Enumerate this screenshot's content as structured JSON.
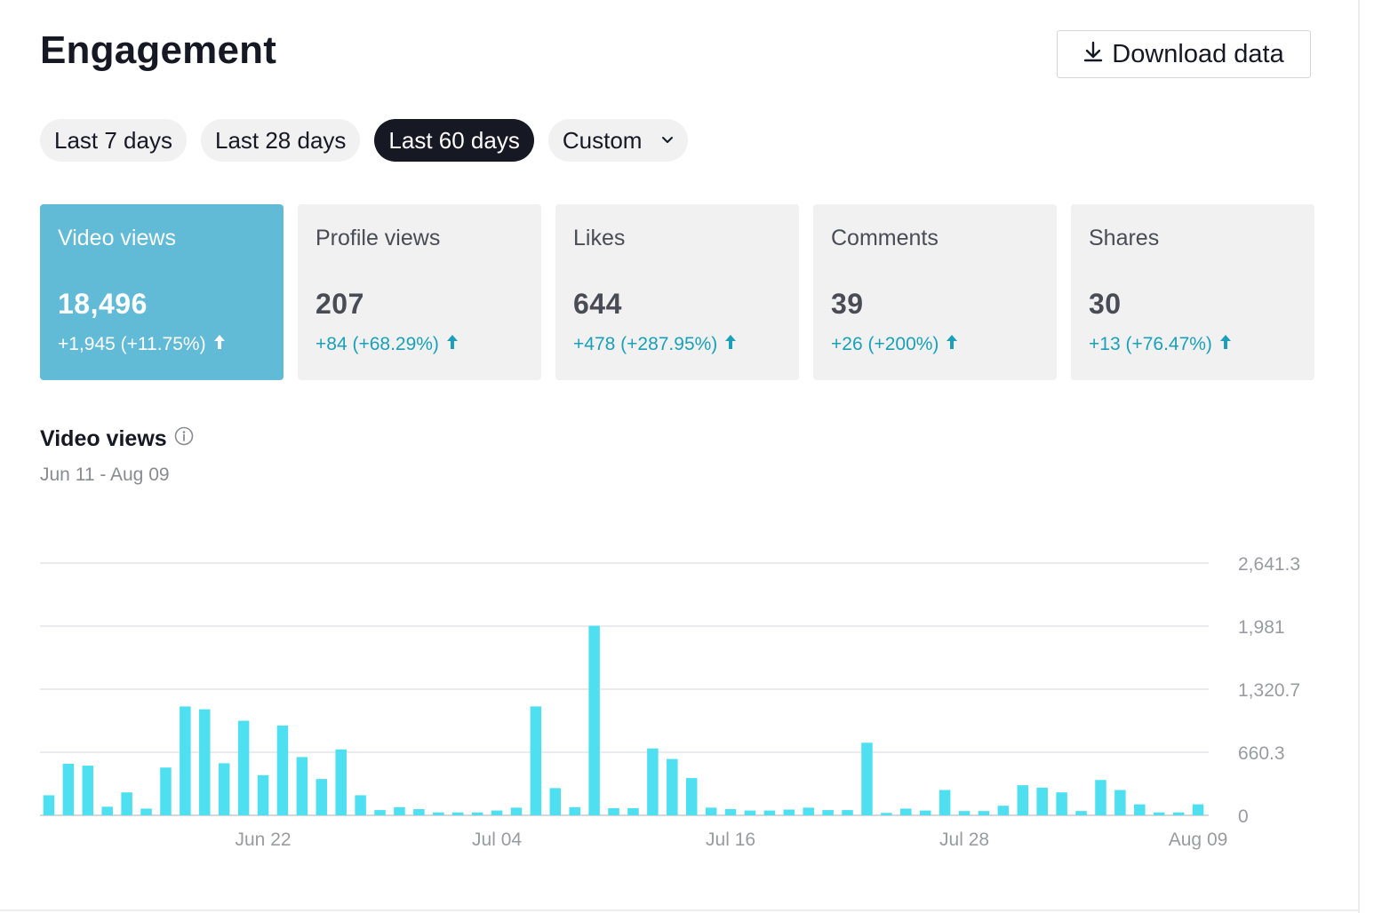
{
  "header": {
    "title": "Engagement",
    "download_label": "Download data"
  },
  "range_filters": [
    {
      "label": "Last 7 days",
      "active": false
    },
    {
      "label": "Last 28 days",
      "active": false
    },
    {
      "label": "Last 60 days",
      "active": true
    },
    {
      "label": "Custom",
      "active": false,
      "icon": "chevron-down-icon"
    }
  ],
  "metrics": [
    {
      "label": "Video views",
      "value": "18,496",
      "change": "+1,945 (+11.75%)",
      "active": true
    },
    {
      "label": "Profile views",
      "value": "207",
      "change": "+84 (+68.29%)",
      "active": false
    },
    {
      "label": "Likes",
      "value": "644",
      "change": "+478 (+287.95%)",
      "active": false
    },
    {
      "label": "Comments",
      "value": "39",
      "change": "+26 (+200%)",
      "active": false
    },
    {
      "label": "Shares",
      "value": "30",
      "change": "+13 (+76.47%)",
      "active": false
    }
  ],
  "section": {
    "title": "Video views",
    "date_range": "Jun 11 - Aug 09"
  },
  "colors": {
    "accent": "#62bbd6",
    "bar": "#4ee0f0",
    "positive": "#1aa0b8",
    "dark": "#161823",
    "card_bg": "#f1f1f2"
  },
  "chart_data": {
    "type": "bar",
    "title": "Video views",
    "x_start": "Jun 11",
    "x_end": "Aug 09",
    "x_tick_labels": [
      {
        "label": "Jun 22",
        "index": 11
      },
      {
        "label": "Jul 04",
        "index": 23
      },
      {
        "label": "Jul 16",
        "index": 35
      },
      {
        "label": "Jul 28",
        "index": 47
      },
      {
        "label": "Aug 09",
        "index": 59
      }
    ],
    "y_ticks": [
      0,
      660.3,
      1320.7,
      1981,
      2641.3
    ],
    "y_tick_labels": [
      "0",
      "660.3",
      "1,320.7",
      "1,981",
      "2,641.3"
    ],
    "ylim": [
      0,
      2641.3
    ],
    "grid": true,
    "values": [
      210,
      540,
      520,
      90,
      240,
      70,
      500,
      1140,
      1110,
      545,
      990,
      420,
      940,
      610,
      380,
      690,
      210,
      55,
      85,
      65,
      30,
      30,
      30,
      50,
      80,
      1140,
      285,
      85,
      1985,
      75,
      75,
      700,
      590,
      390,
      80,
      65,
      50,
      50,
      60,
      80,
      55,
      55,
      760,
      25,
      70,
      50,
      265,
      45,
      45,
      100,
      315,
      290,
      240,
      45,
      370,
      265,
      115,
      30,
      30,
      115
    ]
  }
}
